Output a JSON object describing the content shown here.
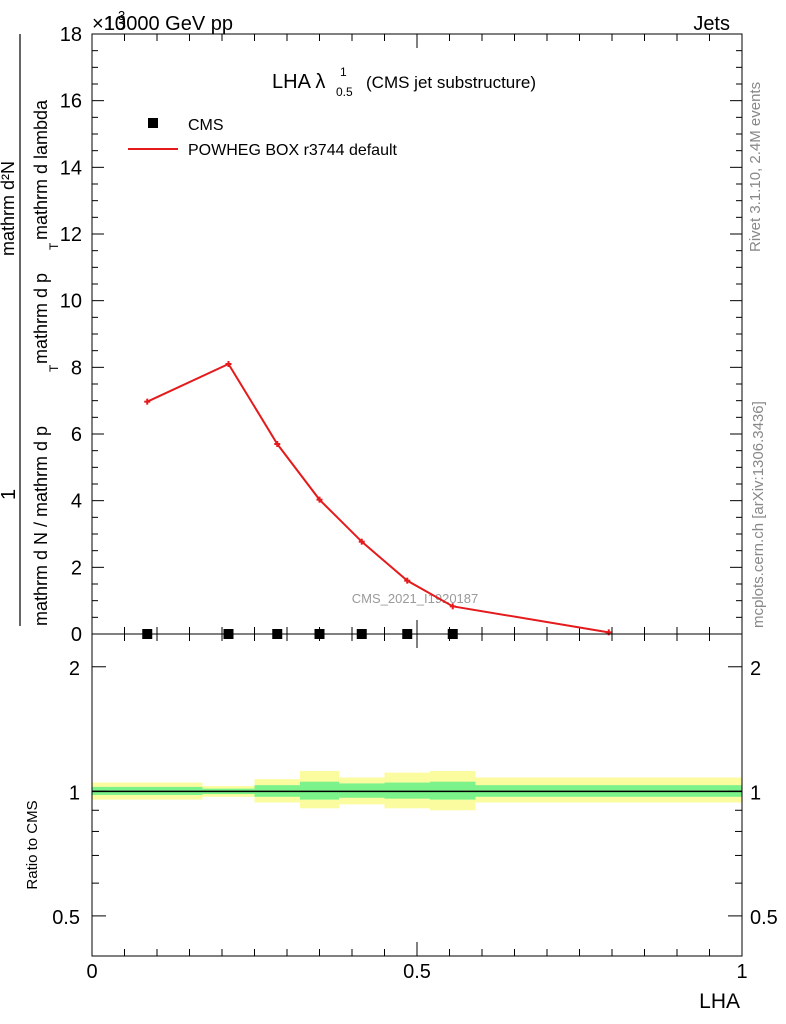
{
  "header": {
    "energy_label": "13000 GeV pp",
    "process_label": "Jets",
    "exponent_label": "×10",
    "exponent_power": "3"
  },
  "side_labels": {
    "rivet": "Rivet 3.1.10,  2.4M events",
    "mcplots": "mcplots.cern.ch [arXiv:1306.3436]"
  },
  "watermark": "CMS_2021_I1920187",
  "chart_data": [
    {
      "type": "line",
      "title": "LHA λ",
      "title_super": "1",
      "title_sub": "0.5",
      "subtitle": "(CMS jet substructure)",
      "xlabel": "LHA",
      "ylabel_numerator": "1",
      "ylabel_denominator": "mathrm d N / mathrm d p_T mathrm d p_T mathrm d lambda",
      "ylabel_dn": "mathrm d²N",
      "ylabel_lines": [
        "mathrm d N / mathrm d p",
        "mathrm d p",
        "mathrm d lambda"
      ],
      "ylabel_sub": "T",
      "xlim": [
        0,
        1
      ],
      "ylim": [
        0,
        18
      ],
      "y_ticks": [
        0,
        2,
        4,
        6,
        8,
        10,
        12,
        14,
        16,
        18
      ],
      "x_ticks": [
        0,
        0.5,
        1
      ],
      "x_tick_labels": [
        "0",
        "0.5",
        "1"
      ],
      "legend": [
        "CMS",
        "POWHEG BOX r3744 default"
      ],
      "series": [
        {
          "name": "CMS",
          "style": "markers",
          "color": "#000000",
          "x": [
            0.085,
            0.21,
            0.285,
            0.35,
            0.415,
            0.485,
            0.555
          ],
          "values": [
            0,
            0,
            0,
            0,
            0,
            0,
            0
          ]
        },
        {
          "name": "POWHEG BOX r3744 default",
          "style": "line",
          "color": "#e41a1c",
          "x": [
            0.085,
            0.21,
            0.285,
            0.35,
            0.415,
            0.485,
            0.555,
            0.795
          ],
          "values": [
            6.97,
            8.1,
            5.7,
            4.03,
            2.77,
            1.6,
            0.83,
            0.05
          ]
        }
      ]
    },
    {
      "type": "area",
      "ylabel": "Ratio to CMS",
      "xlabel": "LHA",
      "xlim": [
        0,
        1
      ],
      "ylim": [
        0.4,
        2.4
      ],
      "y_tick_labels": [
        "0.5",
        "1",
        "2"
      ],
      "y_ticks": [
        0.5,
        1,
        2
      ],
      "reference_line": 1,
      "band_colors": {
        "inner": "#7cf28a",
        "outer": "#fbfba0",
        "line": "#000000"
      },
      "bins": [
        {
          "lo": 0,
          "hi": 0.17,
          "inner": [
            0.98,
            1.025
          ],
          "outer": [
            0.955,
            1.05
          ]
        },
        {
          "lo": 0.17,
          "hi": 0.25,
          "inner": [
            0.985,
            1.015
          ],
          "outer": [
            0.97,
            1.03
          ]
        },
        {
          "lo": 0.25,
          "hi": 0.32,
          "inner": [
            0.97,
            1.035
          ],
          "outer": [
            0.94,
            1.07
          ]
        },
        {
          "lo": 0.32,
          "hi": 0.38,
          "inner": [
            0.955,
            1.055
          ],
          "outer": [
            0.91,
            1.12
          ]
        },
        {
          "lo": 0.38,
          "hi": 0.45,
          "inner": [
            0.965,
            1.045
          ],
          "outer": [
            0.93,
            1.08
          ]
        },
        {
          "lo": 0.45,
          "hi": 0.52,
          "inner": [
            0.96,
            1.05
          ],
          "outer": [
            0.91,
            1.11
          ]
        },
        {
          "lo": 0.52,
          "hi": 0.59,
          "inner": [
            0.955,
            1.055
          ],
          "outer": [
            0.9,
            1.12
          ]
        },
        {
          "lo": 0.59,
          "hi": 1.0,
          "inner": [
            0.97,
            1.035
          ],
          "outer": [
            0.94,
            1.08
          ]
        }
      ]
    }
  ]
}
